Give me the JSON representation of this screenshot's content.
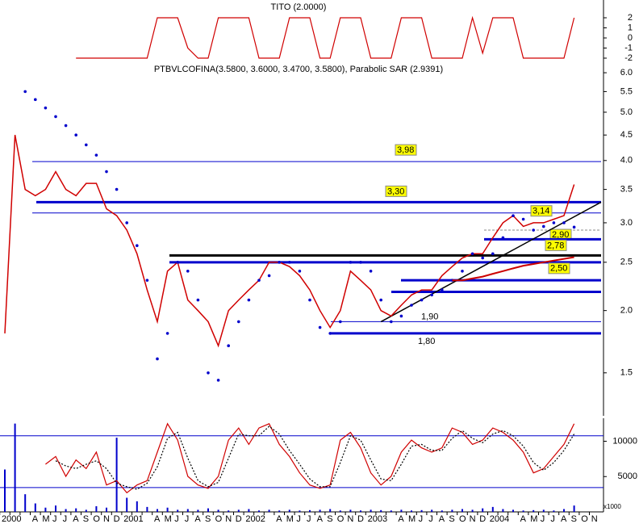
{
  "chart_data": [
    {
      "type": "line",
      "title": "TITO (2.0000)",
      "color": "#d00000",
      "ylim": [
        -2.4,
        2.4
      ],
      "yticks": [
        2,
        1,
        0,
        -1,
        -2
      ],
      "values": [
        null,
        null,
        null,
        null,
        null,
        null,
        null,
        -2,
        -2,
        -2,
        -2,
        -2,
        -2,
        -2,
        -2,
        2,
        2,
        2,
        -1,
        -2,
        -2,
        2,
        2,
        2,
        2,
        -2,
        -2,
        -2,
        2,
        2,
        2,
        -2,
        -2,
        2,
        2,
        2,
        -2,
        -2,
        -2,
        2,
        2,
        2,
        -2,
        -2,
        -2,
        -2,
        2,
        -1.5,
        2,
        2,
        2,
        -2,
        -2,
        -2,
        -2,
        -2,
        2,
        null,
        null
      ]
    },
    {
      "type": "line",
      "title": "PTBVLCOFINA(3.5800, 3.6000, 3.4700, 3.5800), Parabolic SAR (2.9391)",
      "log_scale": true,
      "ylim": [
        1.23,
        6.23
      ],
      "yticks": [
        {
          "value": 6,
          "label": "6.0"
        },
        5.5,
        {
          "value": 5,
          "label": "5.0"
        },
        4.5,
        {
          "value": 4,
          "label": "4.0"
        },
        3.5,
        {
          "value": 3,
          "label": "3.0"
        },
        2.5,
        {
          "value": 2,
          "label": "2.0"
        },
        1.5
      ],
      "series": [
        {
          "color": "#d00000",
          "style": "line",
          "values": [
            1.8,
            4.5,
            3.5,
            3.4,
            3.5,
            3.8,
            3.5,
            3.4,
            3.6,
            3.6,
            3.2,
            3.1,
            2.9,
            2.6,
            2.2,
            1.9,
            2.4,
            2.5,
            2.1,
            2.0,
            1.9,
            1.7,
            2.0,
            2.1,
            2.2,
            2.3,
            2.5,
            2.5,
            2.45,
            2.35,
            2.2,
            2.0,
            1.85,
            2.0,
            2.4,
            2.3,
            2.2,
            2.0,
            1.95,
            2.05,
            2.15,
            2.2,
            2.2,
            2.35,
            2.45,
            2.55,
            2.6,
            2.6,
            2.8,
            3.0,
            3.1,
            2.95,
            3.0,
            3.0,
            3.05,
            3.1,
            3.58,
            null,
            null
          ]
        },
        {
          "color": "#0000cc",
          "style": "dots",
          "values": [
            null,
            null,
            5.5,
            5.3,
            5.1,
            4.9,
            4.7,
            4.5,
            4.3,
            4.1,
            3.8,
            3.5,
            3.0,
            2.7,
            2.3,
            1.6,
            1.8,
            2.5,
            2.4,
            2.1,
            1.5,
            1.45,
            1.7,
            1.9,
            2.1,
            2.3,
            2.35,
            2.5,
            2.5,
            2.4,
            2.1,
            1.85,
            1.8,
            1.9,
            2.5,
            2.5,
            2.4,
            2.1,
            1.9,
            1.95,
            2.05,
            2.1,
            2.15,
            2.2,
            2.3,
            2.4,
            2.6,
            2.55,
            2.6,
            2.8,
            3.1,
            3.05,
            2.9,
            2.95,
            3.0,
            3.0,
            2.94,
            null,
            null
          ]
        },
        {
          "color": "#cc0000",
          "style": "line",
          "values": [
            null,
            null,
            null,
            null,
            null,
            null,
            null,
            null,
            null,
            null,
            null,
            null,
            null,
            null,
            null,
            null,
            null,
            null,
            null,
            null,
            null,
            null,
            null,
            null,
            null,
            null,
            null,
            null,
            null,
            null,
            null,
            null,
            null,
            null,
            null,
            null,
            null,
            null,
            null,
            null,
            null,
            null,
            null,
            null,
            2.3,
            2.3,
            2.32,
            2.34,
            2.37,
            2.4,
            2.43,
            2.46,
            2.48,
            2.5,
            2.52,
            2.54,
            2.56,
            null,
            null
          ]
        }
      ],
      "levels": [
        {
          "value": 3.98,
          "label": "3,98",
          "color": "#0000cc",
          "thick": false,
          "boxed": true
        },
        {
          "value": 3.3,
          "label": "3,30",
          "color": "#0000cc",
          "thick": true,
          "boxed": true
        },
        {
          "value": 3.14,
          "label": "3,14",
          "color": "#0000cc",
          "thick": false,
          "boxed": true
        },
        {
          "value": 2.9,
          "label": "2,90",
          "color": "#888888",
          "thick": false,
          "boxed": true
        },
        {
          "value": 2.78,
          "label": "2,78",
          "color": "#0000cc",
          "thick": true,
          "boxed": true
        },
        {
          "value": 2.5,
          "label": "2,50",
          "color": "#0000cc",
          "thick": true,
          "boxed": true
        },
        {
          "value": 1.9,
          "label": "1,90",
          "color": "#0000cc",
          "thick": false,
          "boxed": false
        },
        {
          "value": 1.8,
          "label": "1,80",
          "color": "#0000cc",
          "thick": true,
          "boxed": false
        }
      ],
      "plain_levels": [
        {
          "value": 2.58,
          "color": "#000000"
        },
        {
          "value": 2.3,
          "color": "#0000cc"
        },
        {
          "value": 2.18,
          "color": "#0000cc"
        }
      ]
    },
    {
      "type": "bar",
      "unit_label": "x1000",
      "categories": [
        "2000",
        null,
        null,
        "A",
        "M",
        "J",
        "J",
        "A",
        "S",
        "O",
        "N",
        "D",
        "2001",
        null,
        null,
        "A",
        "M",
        "J",
        "J",
        "A",
        "S",
        "O",
        "N",
        "D",
        "2002",
        null,
        null,
        "A",
        "M",
        "J",
        "J",
        "A",
        "S",
        "O",
        "N",
        "D",
        "2003",
        null,
        null,
        "A",
        "M",
        "J",
        "J",
        "A",
        "S",
        "O",
        "N",
        "D",
        "2004",
        null,
        null,
        "A",
        "M",
        "J",
        "J",
        "A",
        "S",
        "O",
        "N"
      ],
      "ylim": [
        0,
        12800
      ],
      "yticks": [
        10000,
        5000
      ],
      "color": "#0000cc",
      "values": [
        6000,
        12500,
        2500,
        1200,
        600,
        900,
        400,
        500,
        300,
        800,
        600,
        10500,
        2000,
        1500,
        700,
        400,
        600,
        300,
        400,
        300,
        500,
        300,
        200,
        300,
        400,
        200,
        300,
        200,
        300,
        200,
        250,
        300,
        400,
        200,
        300,
        200,
        300,
        250,
        200,
        300,
        200,
        250,
        300,
        200,
        300,
        400,
        300,
        500,
        700,
        400,
        300,
        200,
        250,
        300,
        200,
        400,
        900,
        null,
        null
      ],
      "y2lim": [
        -8.2,
        96.6
      ],
      "y2_levels": [
        80,
        20
      ],
      "series": [
        {
          "color": "#d00000",
          "style": "line",
          "axis": "y2",
          "values": [
            null,
            null,
            null,
            null,
            47,
            56,
            33,
            52,
            42,
            61,
            23,
            28,
            14,
            23,
            28,
            61,
            94,
            75,
            33,
            23,
            19,
            33,
            75,
            89,
            70,
            89,
            94,
            70,
            56,
            37,
            23,
            19,
            23,
            75,
            84,
            66,
            37,
            23,
            33,
            61,
            75,
            66,
            61,
            66,
            89,
            84,
            70,
            75,
            89,
            84,
            75,
            61,
            37,
            42,
            56,
            70,
            94,
            null,
            null
          ]
        },
        {
          "color": "#000000",
          "style": "dashed",
          "axis": "y2",
          "values": [
            null,
            null,
            null,
            null,
            null,
            51,
            45,
            42,
            47,
            51,
            42,
            25,
            21,
            18,
            25,
            44,
            77,
            84,
            54,
            28,
            21,
            26,
            54,
            82,
            80,
            80,
            91,
            82,
            63,
            47,
            30,
            21,
            21,
            49,
            80,
            75,
            52,
            30,
            28,
            47,
            68,
            70,
            63,
            63,
            77,
            86,
            77,
            72,
            82,
            86,
            80,
            68,
            49,
            40,
            49,
            63,
            82,
            null,
            null
          ]
        }
      ]
    }
  ]
}
